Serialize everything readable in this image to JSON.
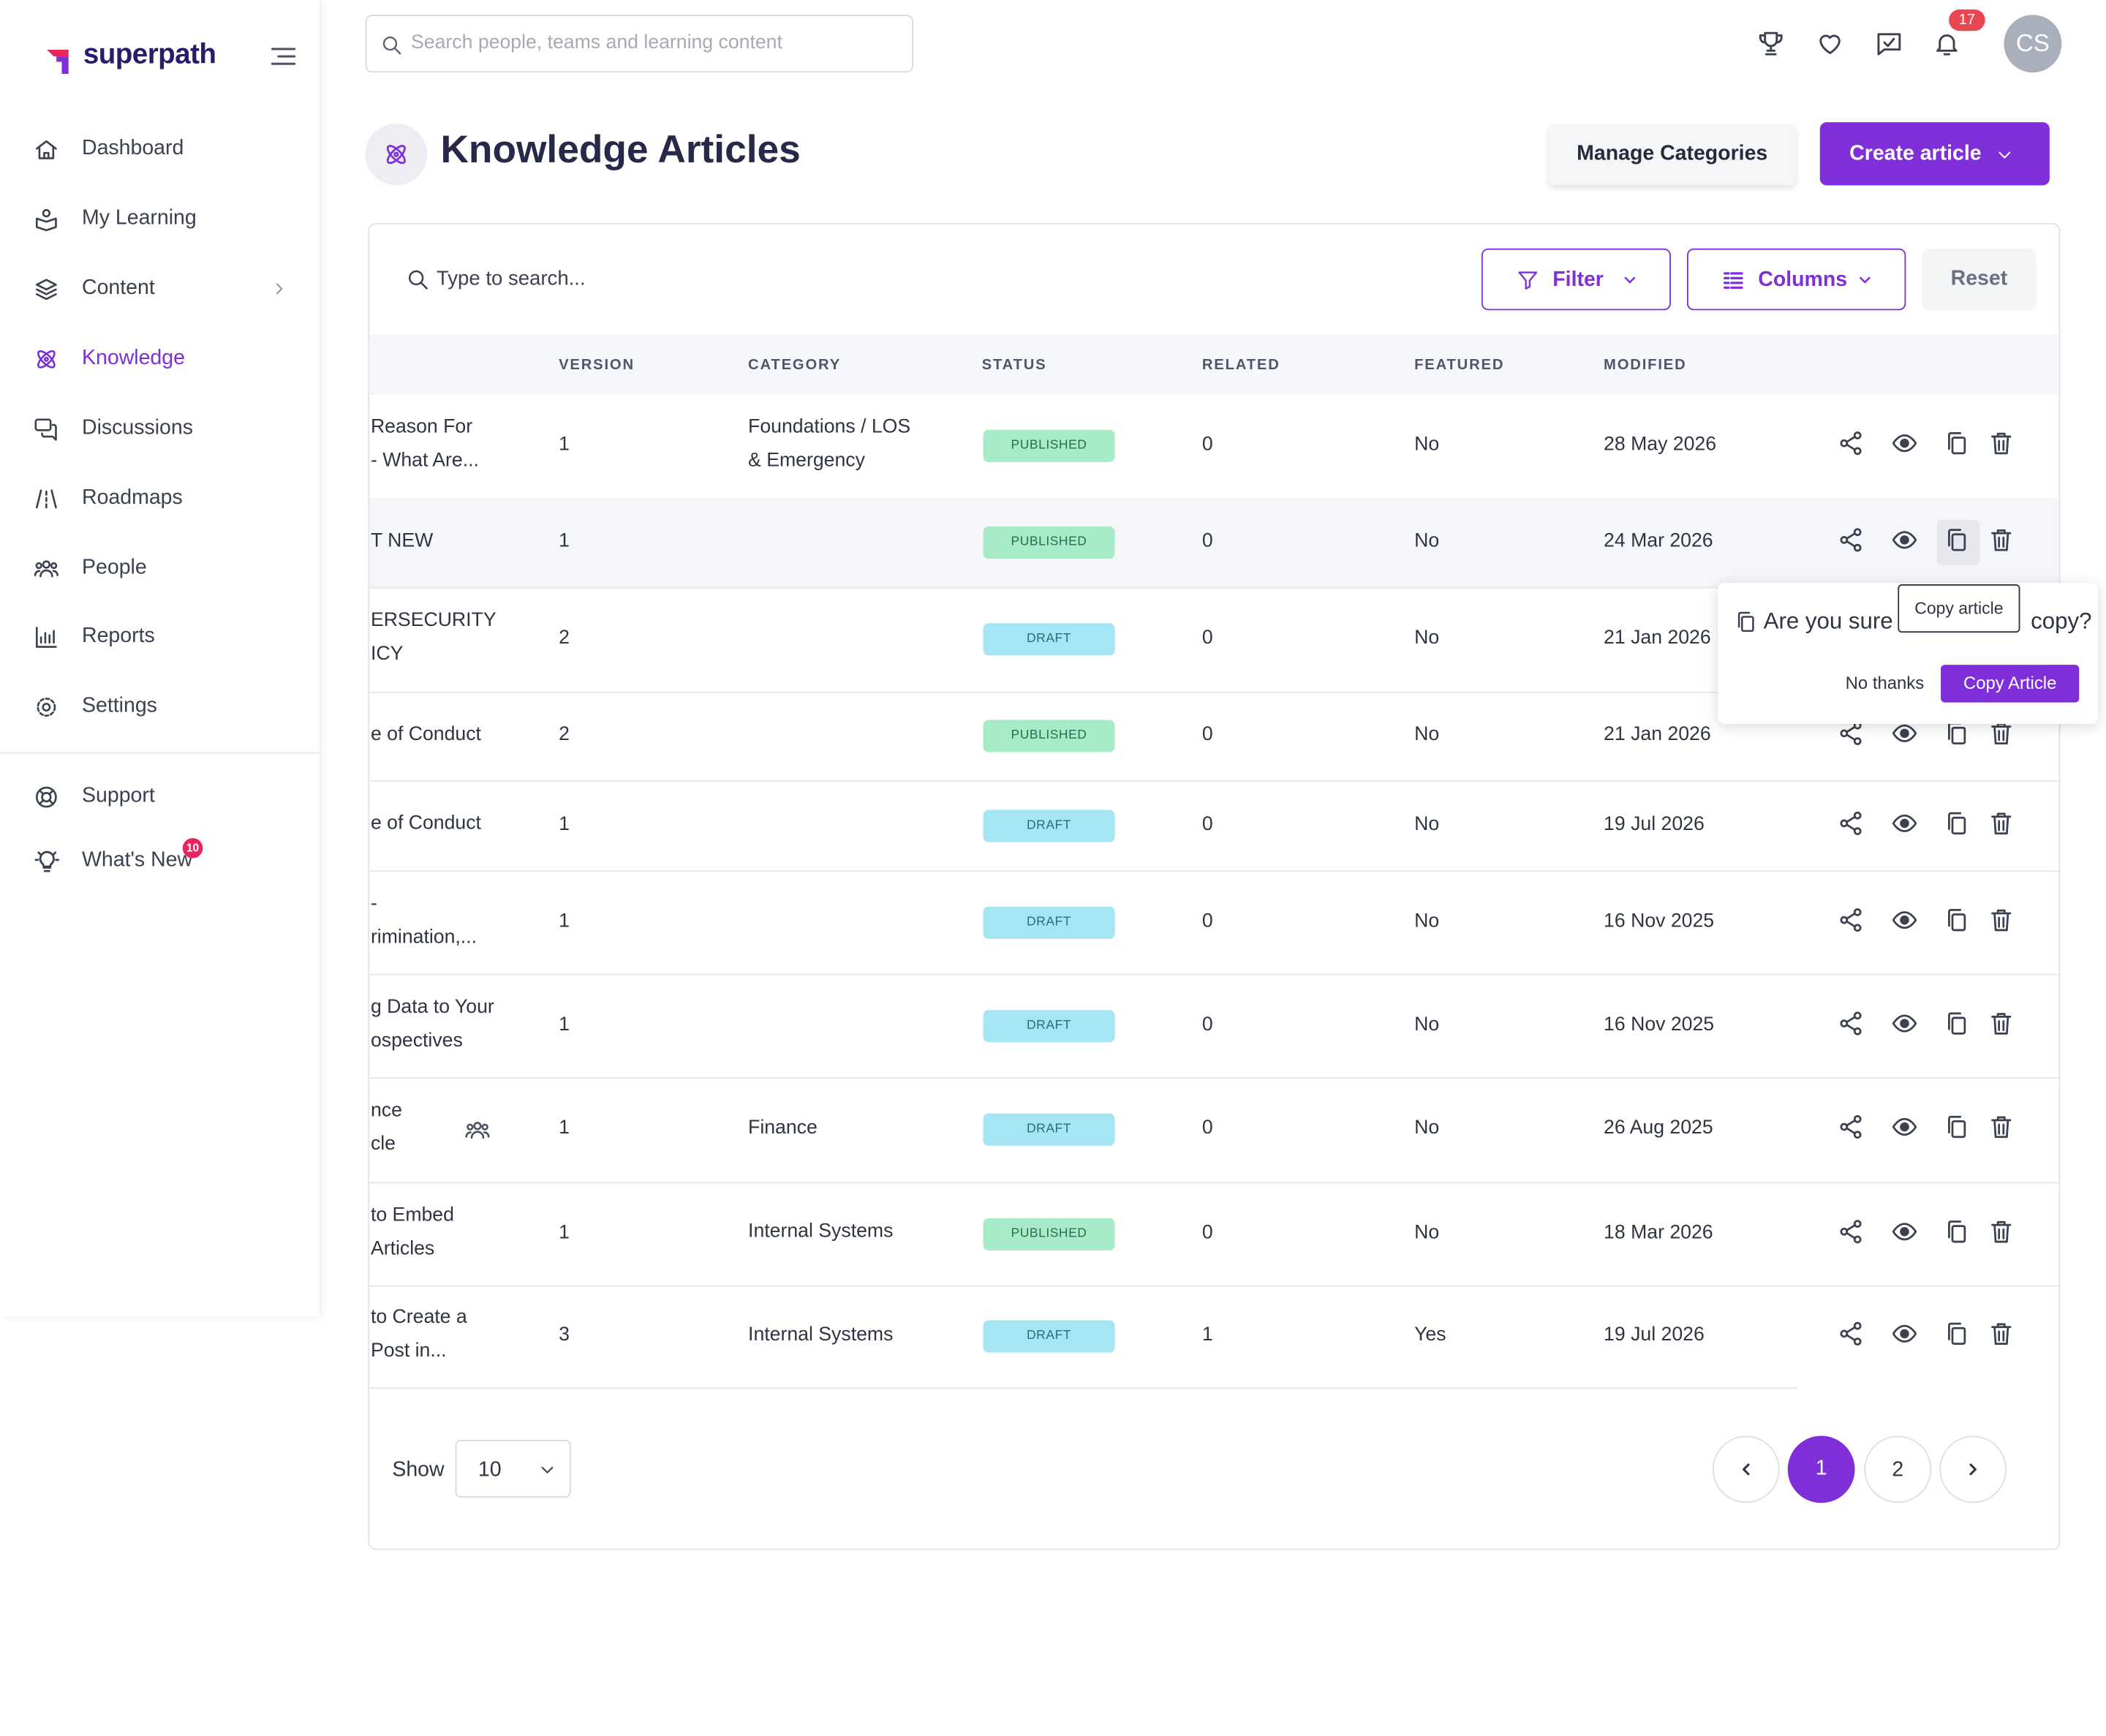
{
  "sidebar": {
    "brand": "superpath",
    "nav": [
      "Dashboard",
      "My Learning",
      "Content",
      "Knowledge",
      "Discussions",
      "Roadmaps",
      "People",
      "Reports",
      "Settings"
    ],
    "support": "Support",
    "whats_new": "What's New",
    "whats_new_badge": "10"
  },
  "topbar": {
    "search_placeholder": "Search people, teams and learning content",
    "notifications": "17",
    "avatar": "CS"
  },
  "header": {
    "title": "Knowledge Articles",
    "manage": "Manage Categories",
    "create": "Create article"
  },
  "toolbar": {
    "search_placeholder": "Type to search...",
    "filter": "Filter",
    "columns": "Columns",
    "reset": "Reset"
  },
  "table": {
    "columns": [
      "VERSION",
      "CATEGORY",
      "STATUS",
      "RELATED",
      "FEATURED",
      "MODIFIED"
    ],
    "rows": [
      {
        "title": [
          "Reason For",
          "- What Are..."
        ],
        "version": 1,
        "category": [
          "Foundations / LOS",
          "& Emergency"
        ],
        "status": "PUBLISHED",
        "related": 0,
        "featured": "No",
        "modified": "28 May 2026"
      },
      {
        "title": [
          "T NEW"
        ],
        "version": 1,
        "category": null,
        "status": "PUBLISHED",
        "related": 0,
        "featured": "No",
        "modified": "24 Mar 2026"
      },
      {
        "title": [
          "ERSECURITY",
          "ICY"
        ],
        "version": 2,
        "category": null,
        "status": "DRAFT",
        "related": 0,
        "featured": "No",
        "modified": "21 Jan 2026"
      },
      {
        "title": [
          "e of Conduct"
        ],
        "version": 2,
        "category": null,
        "status": "PUBLISHED",
        "related": 0,
        "featured": "No",
        "modified": "21 Jan 2026"
      },
      {
        "title": [
          "e of Conduct"
        ],
        "version": 1,
        "category": null,
        "status": "DRAFT",
        "related": 0,
        "featured": "No",
        "modified": "19 Jul 2026"
      },
      {
        "title": [
          "-",
          "rimination,..."
        ],
        "version": 1,
        "category": null,
        "status": "DRAFT",
        "related": 0,
        "featured": "No",
        "modified": "16 Nov 2025"
      },
      {
        "title": [
          "g Data to Your",
          "ospectives"
        ],
        "version": 1,
        "category": null,
        "status": "DRAFT",
        "related": 0,
        "featured": "No",
        "modified": "16 Nov 2025"
      },
      {
        "title": [
          "nce",
          "cle"
        ],
        "version": 1,
        "category": [
          "Finance"
        ],
        "status": "DRAFT",
        "related": 0,
        "featured": "No",
        "modified": "26 Aug 2025"
      },
      {
        "title": [
          "to Embed",
          "Articles"
        ],
        "version": 1,
        "category": [
          "Internal Systems"
        ],
        "status": "PUBLISHED",
        "related": 0,
        "featured": "No",
        "modified": "18 Mar 2026"
      },
      {
        "title": [
          "to Create a",
          "Post in..."
        ],
        "version": 3,
        "category": [
          "Internal Systems"
        ],
        "status": "DRAFT",
        "related": 1,
        "featured": "Yes",
        "modified": "19 Jul 2026"
      }
    ]
  },
  "popover": {
    "question_start": "Are you sure",
    "question_end": "copy?",
    "tooltip": "Copy article",
    "cancel": "No thanks",
    "confirm": "Copy Article"
  },
  "footer": {
    "show": "Show",
    "page_size": "10",
    "pages": [
      "1",
      "2"
    ]
  }
}
